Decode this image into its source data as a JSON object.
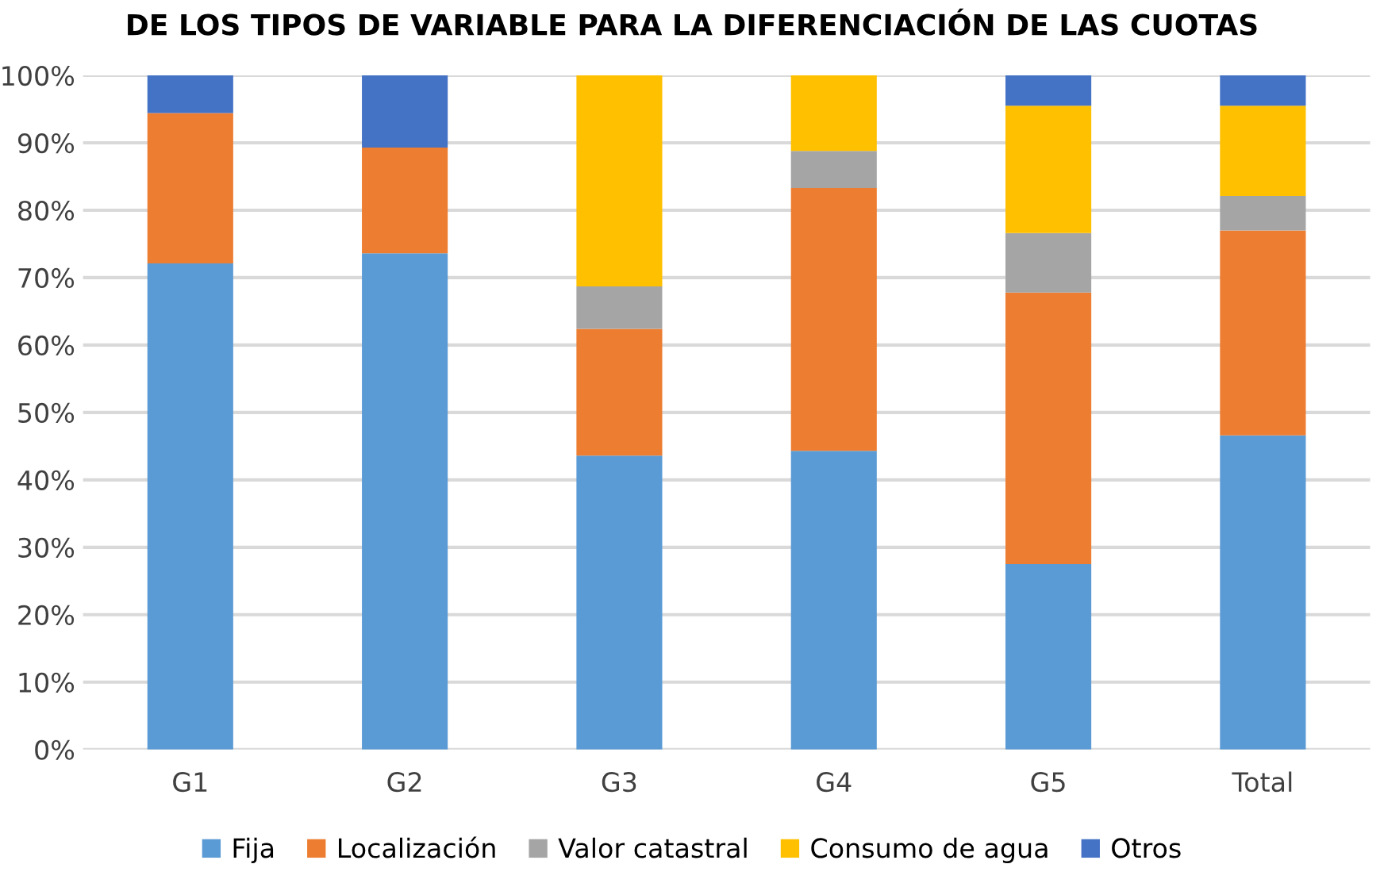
{
  "chart_data": {
    "type": "bar",
    "stacked": true,
    "title": "DE LOS TIPOS DE VARIABLE PARA LA DIFERENCIACIÓN DE LAS CUOTAS",
    "categories": [
      "G1",
      "G2",
      "G3",
      "G4",
      "G5",
      "Total"
    ],
    "series": [
      {
        "name": "Fija",
        "color": "#5b9bd5",
        "values": [
          72.1,
          73.6,
          43.6,
          44.3,
          27.5,
          46.6
        ]
      },
      {
        "name": "Localización",
        "color": "#ed7d31",
        "values": [
          22.3,
          15.7,
          18.8,
          39.0,
          40.3,
          30.4
        ]
      },
      {
        "name": "Valor catastral",
        "color": "#a5a5a5",
        "values": [
          0,
          0,
          6.3,
          5.5,
          8.8,
          5.1
        ]
      },
      {
        "name": "Consumo de agua",
        "color": "#ffc000",
        "values": [
          0,
          0,
          31.3,
          11.2,
          18.9,
          13.4
        ]
      },
      {
        "name": "Otros",
        "color": "#4472c4",
        "values": [
          5.6,
          10.7,
          0,
          0,
          4.5,
          4.5
        ]
      }
    ],
    "ylim": [
      0,
      100
    ],
    "yticks": [
      {
        "value": 0,
        "label": "0%"
      },
      {
        "value": 10,
        "label": "10%"
      },
      {
        "value": 20,
        "label": "20%"
      },
      {
        "value": 30,
        "label": "30%"
      },
      {
        "value": 40,
        "label": "40%"
      },
      {
        "value": 50,
        "label": "50%"
      },
      {
        "value": 60,
        "label": "60%"
      },
      {
        "value": 70,
        "label": "70%"
      },
      {
        "value": 80,
        "label": "80%"
      },
      {
        "value": 90,
        "label": "90%"
      },
      {
        "value": 100,
        "label": "100%"
      }
    ],
    "grid": "y",
    "legend": "bottom"
  }
}
